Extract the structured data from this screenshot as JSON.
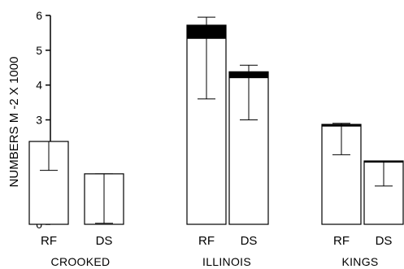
{
  "chart_data": {
    "type": "bar",
    "title": "",
    "ylabel": "NUMBERS M -2 X 1000",
    "xlabel": "",
    "ylim": [
      0,
      6
    ],
    "yticks": [
      0,
      1,
      2,
      3,
      4,
      5,
      6
    ],
    "grid": false,
    "legend": "none",
    "groups": [
      {
        "name": "CROOKED",
        "bars": [
          {
            "category": "RF",
            "value": 2.38,
            "dark_top": 0,
            "err_low": 1.55,
            "err_high": 2.38
          },
          {
            "category": "DS",
            "value": 1.45,
            "dark_top": 0,
            "err_low": 0.03,
            "err_high": 1.45
          }
        ]
      },
      {
        "name": "ILLINOIS",
        "bars": [
          {
            "category": "RF",
            "value": 5.72,
            "dark_top": 0.38,
            "err_low": 3.6,
            "err_high": 5.95
          },
          {
            "category": "DS",
            "value": 4.38,
            "dark_top": 0.17,
            "err_low": 3.0,
            "err_high": 4.57
          }
        ]
      },
      {
        "name": "KINGS",
        "bars": [
          {
            "category": "RF",
            "value": 2.87,
            "dark_top": 0.05,
            "err_low": 2.0,
            "err_high": 2.9
          },
          {
            "category": "DS",
            "value": 1.82,
            "dark_top": 0.02,
            "err_low": 1.1,
            "err_high": 1.82
          }
        ]
      }
    ],
    "colors": {
      "bar_fill": "#ffffff",
      "dark_top": "#000000",
      "stroke": "#000000"
    }
  }
}
